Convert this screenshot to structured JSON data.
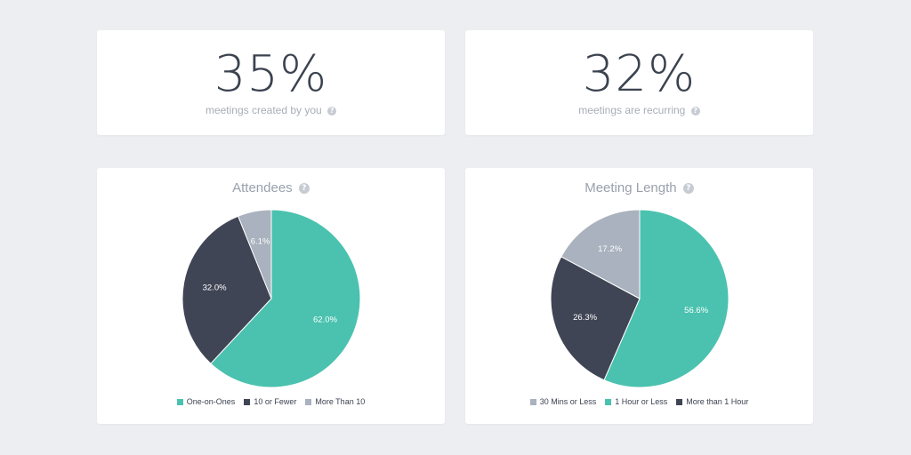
{
  "stats": [
    {
      "value": "35%",
      "caption": "meetings created by you"
    },
    {
      "value": "32%",
      "caption": "meetings are recurring"
    }
  ],
  "help_icon": "?",
  "colors": {
    "teal": "#4ac2af",
    "dark": "#404555",
    "gray": "#a9b2be"
  },
  "chart_data": [
    {
      "type": "pie",
      "title": "Attendees",
      "slices": [
        {
          "label": "One-on-Ones",
          "value": 62.0,
          "text": "62.0%",
          "color": "#4ac2af"
        },
        {
          "label": "10 or Fewer",
          "value": 32.0,
          "text": "32.0%",
          "color": "#404555"
        },
        {
          "label": "More Than 10",
          "value": 6.1,
          "text": "6.1%",
          "color": "#a9b2be"
        }
      ],
      "legend_order": [
        0,
        1,
        2
      ],
      "legend_position": "bottom"
    },
    {
      "type": "pie",
      "title": "Meeting Length",
      "slices": [
        {
          "label": "1 Hour or Less",
          "value": 56.6,
          "text": "56.6%",
          "color": "#4ac2af"
        },
        {
          "label": "More than 1 Hour",
          "value": 26.3,
          "text": "26.3%",
          "color": "#404555"
        },
        {
          "label": "30 Mins or Less",
          "value": 17.2,
          "text": "17.2%",
          "color": "#a9b2be"
        }
      ],
      "legend_order": [
        2,
        0,
        1
      ],
      "legend_position": "bottom"
    }
  ]
}
